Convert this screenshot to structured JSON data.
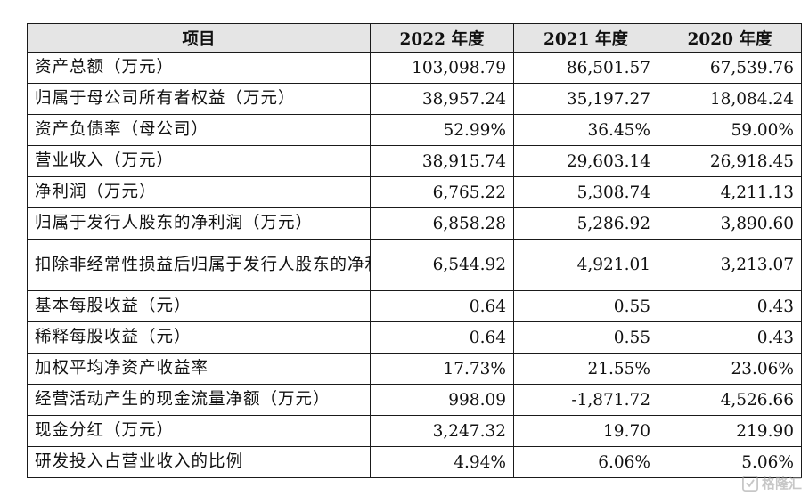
{
  "table": {
    "headers": [
      "项目",
      "2022 年度",
      "2021 年度",
      "2020 年度"
    ],
    "rows": [
      {
        "label": "资产总额（万元）",
        "values": [
          "103,098.79",
          "86,501.57",
          "67,539.76"
        ]
      },
      {
        "label": "归属于母公司所有者权益（万元）",
        "values": [
          "38,957.24",
          "35,197.27",
          "18,084.24"
        ]
      },
      {
        "label": "资产负债率（母公司）",
        "values": [
          "52.99%",
          "36.45%",
          "59.00%"
        ]
      },
      {
        "label": "营业收入（万元）",
        "values": [
          "38,915.74",
          "29,603.14",
          "26,918.45"
        ]
      },
      {
        "label": "净利润（万元）",
        "values": [
          "6,765.22",
          "5,308.74",
          "4,211.13"
        ]
      },
      {
        "label": "归属于发行人股东的净利润（万元）",
        "values": [
          "6,858.28",
          "5,286.92",
          "3,890.60"
        ]
      },
      {
        "label": "扣除非经常性损益后归属于发行人股东的净利润（万元）",
        "values": [
          "6,544.92",
          "4,921.01",
          "3,213.07"
        ]
      },
      {
        "label": "基本每股收益（元）",
        "values": [
          "0.64",
          "0.55",
          "0.43"
        ]
      },
      {
        "label": "稀释每股收益（元）",
        "values": [
          "0.64",
          "0.55",
          "0.43"
        ]
      },
      {
        "label": "加权平均净资产收益率",
        "values": [
          "17.73%",
          "21.55%",
          "23.06%"
        ]
      },
      {
        "label": "经营活动产生的现金流量净额（万元）",
        "values": [
          "998.09",
          "-1,871.72",
          "4,526.66"
        ]
      },
      {
        "label": "现金分红（万元）",
        "values": [
          "3,247.32",
          "19.70",
          "219.90"
        ]
      },
      {
        "label": "研发投入占营业收入的比例",
        "values": [
          "4.94%",
          "6.06%",
          "5.06%"
        ]
      }
    ]
  },
  "watermark": {
    "text": "格隆汇",
    "icon": "gelonghui-logo-icon"
  },
  "colors": {
    "header_bg": "#e5e5e5",
    "border": "#1a1a1a",
    "text": "#111111"
  }
}
